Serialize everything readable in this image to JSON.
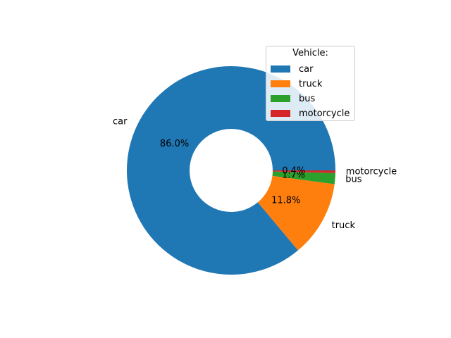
{
  "chart_data": {
    "type": "pie",
    "donut": true,
    "categories": [
      "car",
      "truck",
      "bus",
      "motorcycle"
    ],
    "values": [
      86.0,
      11.8,
      1.7,
      0.4
    ],
    "value_labels": [
      "86.0%",
      "11.8%",
      "1.7%",
      "0.4%"
    ],
    "colors": [
      "#1f77b4",
      "#ff7f0e",
      "#2ca02c",
      "#d62728"
    ],
    "legend": {
      "title": "Vehicle:",
      "placement": "top-right"
    },
    "start_angle_deg": 0,
    "direction": "counterclockwise"
  }
}
